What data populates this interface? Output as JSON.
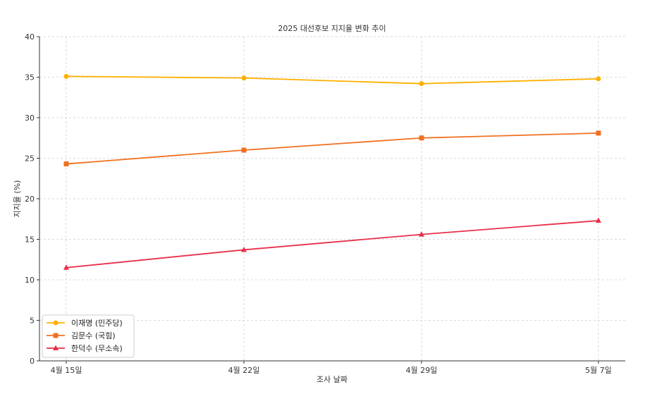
{
  "chart_data": {
    "type": "line",
    "title": "2025 대선후보 지지율 변화 추이",
    "xlabel": "조사 날짜",
    "ylabel": "지지율 (%)",
    "categories": [
      "4월 15일",
      "4월 22일",
      "4월 29일",
      "5월 7일"
    ],
    "ylim": [
      0,
      40
    ],
    "yticks": [
      "0",
      "5",
      "10",
      "15",
      "20",
      "25",
      "30",
      "35",
      "40"
    ],
    "grid": true,
    "legend_position": "bottom-left",
    "series": [
      {
        "name": "이재명 (민주당)",
        "values": [
          35.1,
          34.9,
          34.2,
          34.8
        ],
        "color": "#FFB000",
        "marker": "circle"
      },
      {
        "name": "김문수 (국힘)",
        "values": [
          24.3,
          26.0,
          27.5,
          28.1
        ],
        "color": "#F07020",
        "marker": "square"
      },
      {
        "name": "한덕수 (무소속)",
        "values": [
          11.5,
          13.7,
          15.6,
          17.3
        ],
        "color": "#E8304A",
        "marker": "triangle"
      }
    ]
  }
}
